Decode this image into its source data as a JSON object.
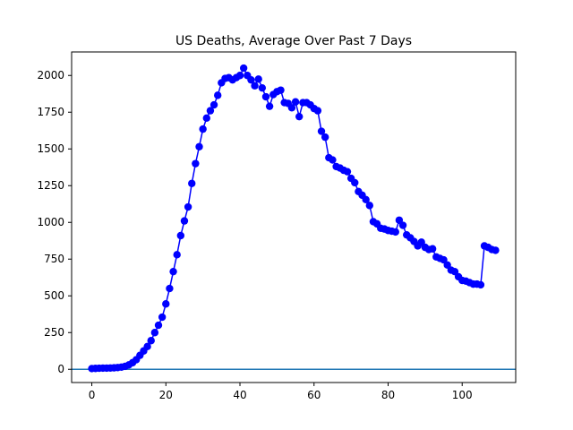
{
  "chart_data": {
    "type": "line",
    "title": "US Deaths, Average Over Past 7 Days",
    "xlabel": "",
    "ylabel": "",
    "xlim": [
      -5.45,
      114.45
    ],
    "ylim": [
      -90,
      2160
    ],
    "x_ticks": [
      0,
      20,
      40,
      60,
      80,
      100
    ],
    "y_ticks": [
      0,
      250,
      500,
      750,
      1000,
      1250,
      1500,
      1750,
      2000
    ],
    "grid": false,
    "legend": "none",
    "colors": {
      "series": "#0000ff",
      "baseline": "#1f77b4"
    },
    "baseline_y": 0,
    "series": [
      {
        "x": [
          0,
          1,
          2,
          3,
          4,
          5,
          6,
          7,
          8,
          9,
          10,
          11,
          12,
          13,
          14,
          15,
          16,
          17,
          18,
          19,
          20,
          21,
          22,
          23,
          24,
          25,
          26,
          27,
          28,
          29,
          30,
          31,
          32,
          33,
          34,
          35,
          36,
          37,
          38,
          39,
          40,
          41,
          42,
          43,
          44,
          45,
          46,
          47,
          48,
          49,
          50,
          51,
          52,
          53,
          54,
          55,
          56,
          57,
          58,
          59,
          60,
          61,
          62,
          63,
          64,
          65,
          66,
          67,
          68,
          69,
          70,
          71,
          72,
          73,
          74,
          75,
          76,
          77,
          78,
          79,
          80,
          81,
          82,
          83,
          84,
          85,
          86,
          87,
          88,
          89,
          90,
          91,
          92,
          93,
          94,
          95,
          96,
          97,
          98,
          99,
          100,
          101,
          102,
          103,
          104,
          105,
          106,
          107,
          108,
          109
        ],
        "values": [
          5,
          6,
          7,
          8,
          8,
          9,
          10,
          12,
          15,
          20,
          30,
          45,
          65,
          95,
          125,
          155,
          195,
          250,
          300,
          355,
          445,
          550,
          665,
          780,
          910,
          1010,
          1105,
          1265,
          1400,
          1515,
          1635,
          1710,
          1760,
          1800,
          1865,
          1950,
          1980,
          1985,
          1970,
          1985,
          2000,
          2050,
          2000,
          1970,
          1930,
          1975,
          1915,
          1855,
          1790,
          1870,
          1890,
          1900,
          1815,
          1810,
          1780,
          1820,
          1720,
          1815,
          1815,
          1800,
          1775,
          1760,
          1620,
          1580,
          1440,
          1425,
          1380,
          1370,
          1355,
          1345,
          1300,
          1270,
          1210,
          1185,
          1155,
          1115,
          1005,
          990,
          960,
          955,
          945,
          940,
          935,
          1015,
          980,
          915,
          895,
          870,
          840,
          865,
          830,
          815,
          820,
          765,
          755,
          745,
          710,
          675,
          665,
          630,
          605,
          600,
          590,
          580,
          580,
          575,
          840,
          830,
          815,
          810
        ]
      }
    ]
  }
}
